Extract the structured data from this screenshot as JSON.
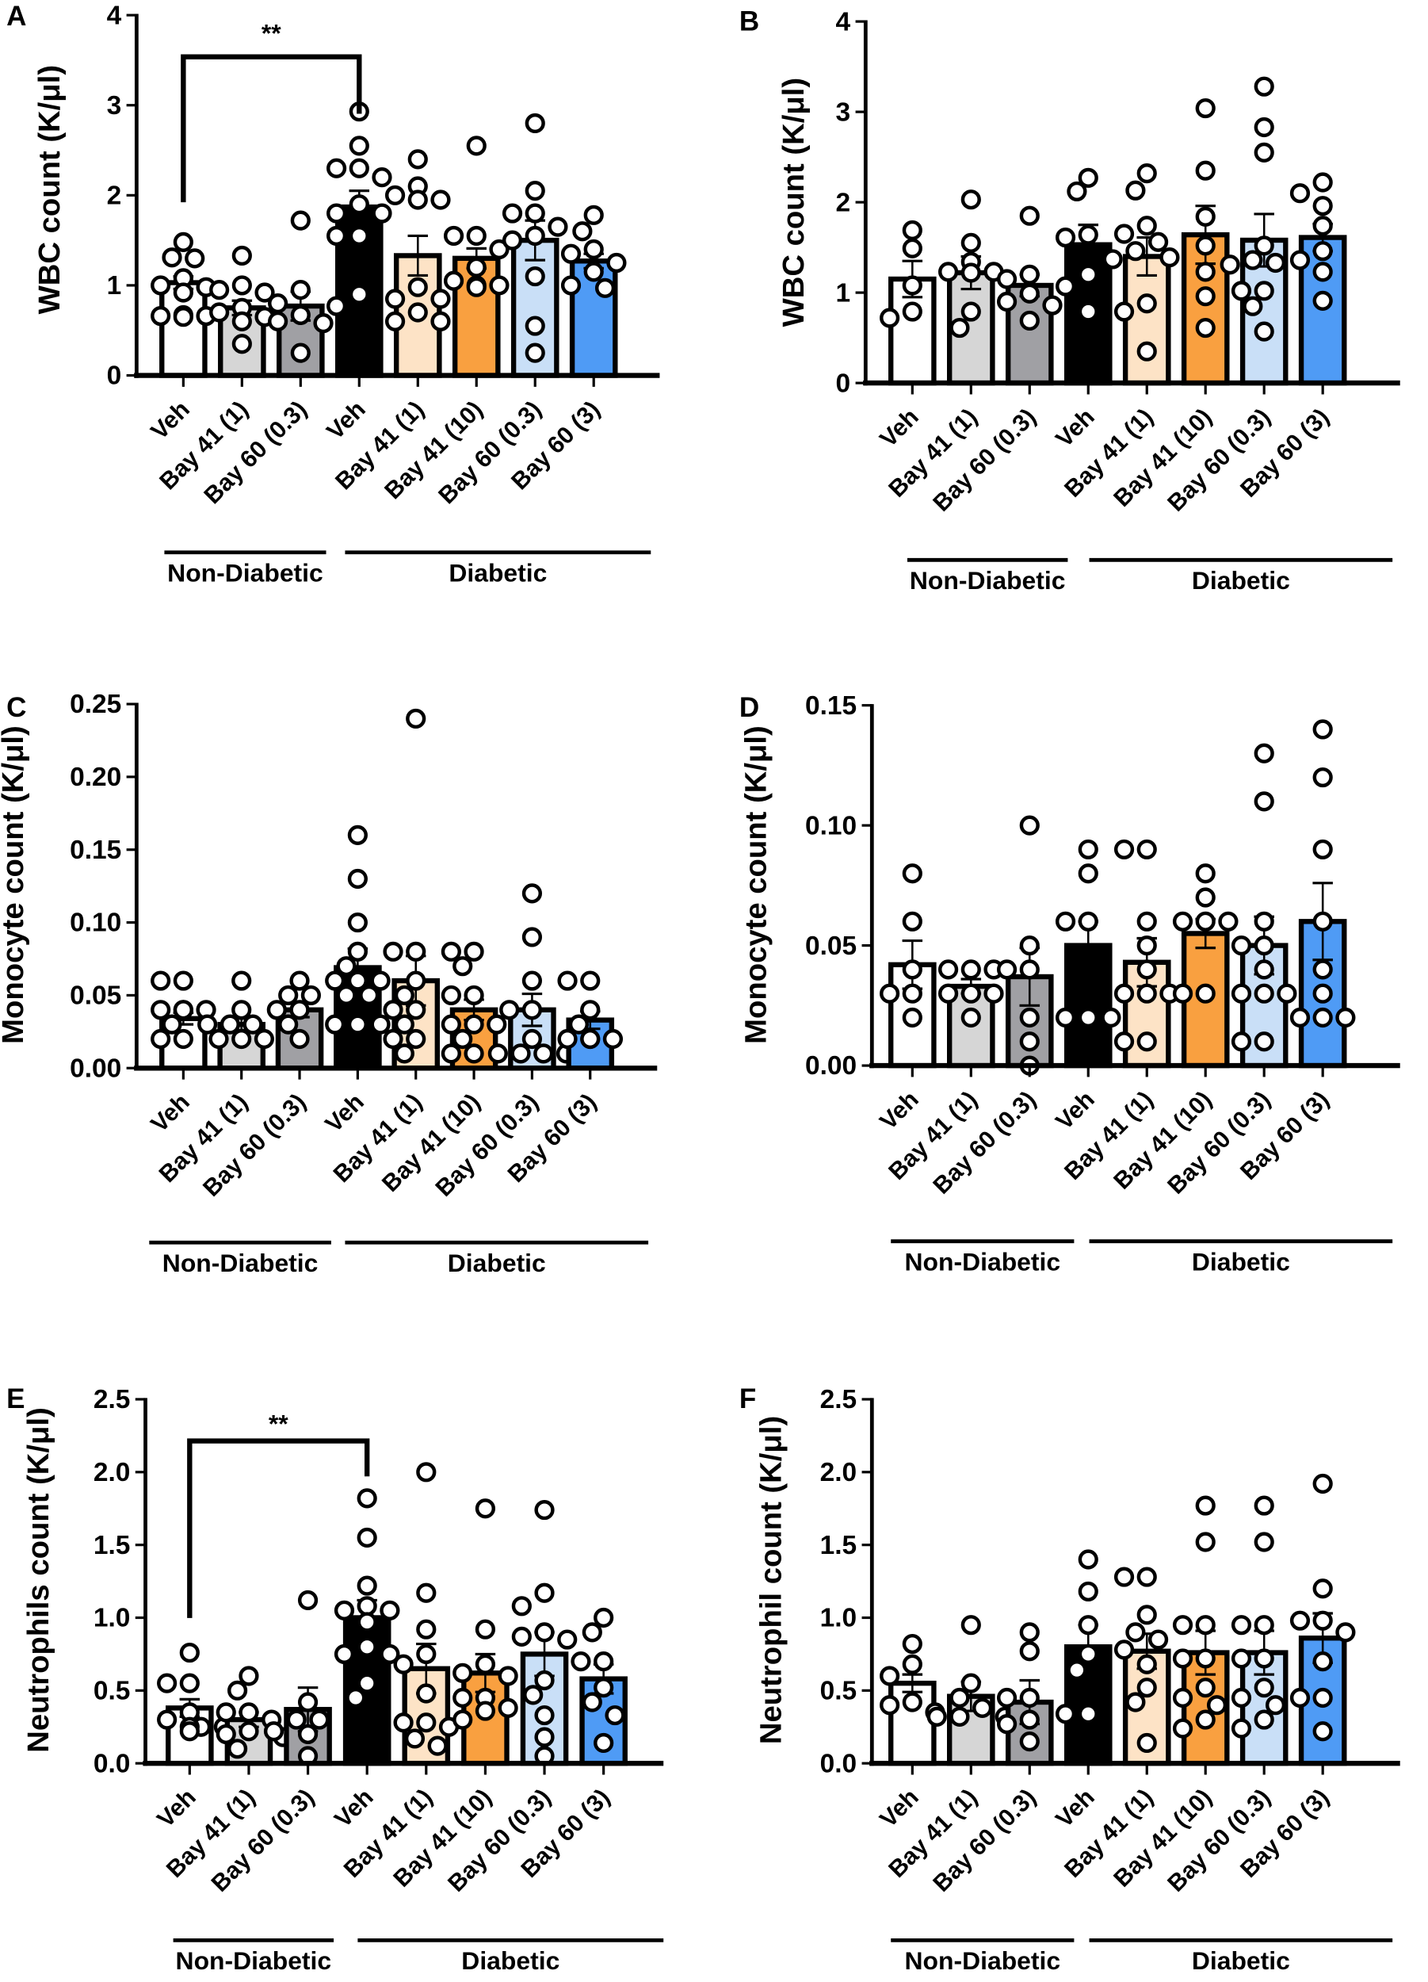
{
  "colors": [
    "#ffffff",
    "#d6d6d6",
    "#a0a0a4",
    "#000000",
    "#fde3c6",
    "#f9a040",
    "#c9dff7",
    "#4f9bf5"
  ],
  "chart_data": [
    {
      "type": "bar",
      "title": "A",
      "ylabel": "WBC count (K/μl)",
      "ylim": [
        0,
        4
      ],
      "yticks": [
        0,
        1,
        2,
        3,
        4
      ],
      "ytick_labels": [
        "0",
        "1",
        "2",
        "3",
        "4"
      ],
      "categories": [
        "Veh",
        "Bay 41 (1)",
        "Bay 60 (0.3)",
        "Veh",
        "Bay 41 (1)",
        "Bay 41 (10)",
        "Bay 60 (0.3)",
        "Bay 60 (3)"
      ],
      "groups": [
        "Non-Diabetic",
        "Diabetic"
      ],
      "significance": {
        "from": 0,
        "to": 3,
        "label": "**"
      },
      "means": [
        1.03,
        0.75,
        0.77,
        1.87,
        1.33,
        1.3,
        1.5,
        1.27
      ],
      "sem": [
        0.07,
        0.08,
        0.16,
        0.18,
        0.22,
        0.11,
        0.22,
        0.08
      ],
      "points": [
        [
          1.48,
          1.31,
          1.3,
          1.08,
          1.0,
          0.98,
          0.92,
          0.67,
          0.66,
          0.66,
          0.65
        ],
        [
          1.33,
          1.0,
          0.95,
          0.92,
          0.75,
          0.7,
          0.65,
          0.6,
          0.35
        ],
        [
          1.72,
          0.95,
          0.8,
          0.67,
          0.6,
          0.58,
          0.25
        ],
        [
          2.93,
          2.55,
          2.3,
          2.3,
          2.2,
          1.9,
          1.8,
          1.8,
          1.55,
          1.55,
          0.9,
          0.77
        ],
        [
          2.4,
          2.1,
          2.0,
          1.95,
          1.95,
          0.98,
          0.85,
          0.85,
          0.7,
          0.6,
          0.6
        ],
        [
          2.55,
          1.55,
          1.55,
          1.4,
          1.2,
          1.05,
          1.0,
          1.0,
          0.98
        ],
        [
          2.8,
          2.05,
          1.8,
          1.8,
          1.65,
          1.55,
          1.5,
          1.1,
          0.55,
          0.25
        ],
        [
          1.78,
          1.6,
          1.4,
          1.35,
          1.25,
          1.15,
          1.0,
          0.97
        ]
      ]
    },
    {
      "type": "bar",
      "title": "B",
      "ylabel": "WBC count (K/μl)",
      "ylim": [
        0,
        4
      ],
      "yticks": [
        0,
        1,
        2,
        3,
        4
      ],
      "ytick_labels": [
        "0",
        "1",
        "2",
        "3",
        "4"
      ],
      "categories": [
        "Veh",
        "Bay 41 (1)",
        "Bay 60 (0.3)",
        "Veh",
        "Bay 41 (1)",
        "Bay 41 (10)",
        "Bay 60 (0.3)",
        "Bay 60 (3)"
      ],
      "groups": [
        "Non-Diabetic",
        "Diabetic"
      ],
      "means": [
        1.15,
        1.22,
        1.08,
        1.53,
        1.4,
        1.64,
        1.58,
        1.61
      ],
      "sem": [
        0.2,
        0.18,
        0.12,
        0.22,
        0.21,
        0.32,
        0.29,
        0.15
      ],
      "points": [
        [
          1.69,
          1.49,
          1.08,
          0.79,
          0.72
        ],
        [
          2.03,
          1.55,
          1.34,
          1.23,
          1.23,
          1.22,
          0.79,
          0.61
        ],
        [
          1.85,
          1.2,
          1.15,
          0.99,
          0.9,
          0.86,
          0.69
        ],
        [
          2.27,
          2.12,
          1.64,
          1.61,
          1.2,
          1.07,
          0.79
        ],
        [
          2.32,
          2.13,
          1.74,
          1.65,
          1.56,
          1.46,
          1.39,
          1.37,
          0.88,
          0.79,
          0.35
        ],
        [
          3.04,
          2.35,
          1.84,
          1.52,
          1.23,
          0.96,
          0.61
        ],
        [
          3.28,
          2.83,
          2.55,
          1.52,
          1.36,
          1.33,
          1.31,
          1.02,
          1.02,
          0.85,
          0.57
        ],
        [
          2.22,
          2.1,
          1.96,
          1.74,
          1.46,
          1.36,
          1.23,
          0.91
        ]
      ]
    },
    {
      "type": "bar",
      "title": "C",
      "ylabel": "Monocyte count (K/μl)",
      "ylim": [
        0,
        0.25
      ],
      "yticks": [
        0,
        0.05,
        0.1,
        0.15,
        0.2,
        0.25
      ],
      "ytick_labels": [
        "0.00",
        "0.05",
        "0.10",
        "0.15",
        "0.20",
        "0.25"
      ],
      "categories": [
        "Veh",
        "Bay 41 (1)",
        "Bay 60 (0.3)",
        "Veh",
        "Bay 41 (1)",
        "Bay 41 (10)",
        "Bay 60 (0.3)",
        "Bay 60 (3)"
      ],
      "groups": [
        "Non-Diabetic",
        "Diabetic"
      ],
      "means": [
        0.034,
        0.03,
        0.04,
        0.069,
        0.06,
        0.04,
        0.04,
        0.033
      ],
      "sem": [
        0.004,
        0.004,
        0.005,
        0.013,
        0.017,
        0.007,
        0.011,
        0.006
      ],
      "points": [
        [
          0.06,
          0.06,
          0.04,
          0.04,
          0.04,
          0.04,
          0.03,
          0.02,
          0.02
        ],
        [
          0.06,
          0.04,
          0.03,
          0.03,
          0.03,
          0.02,
          0.02,
          0.02
        ],
        [
          0.06,
          0.05,
          0.05,
          0.04,
          0.04,
          0.03,
          0.02
        ],
        [
          0.16,
          0.13,
          0.1,
          0.08,
          0.07,
          0.06,
          0.06,
          0.06,
          0.05,
          0.05,
          0.03,
          0.03,
          0.03
        ],
        [
          0.24,
          0.08,
          0.08,
          0.06,
          0.05,
          0.04,
          0.04,
          0.03,
          0.02,
          0.02,
          0.01
        ],
        [
          0.08,
          0.08,
          0.07,
          0.05,
          0.05,
          0.03,
          0.03,
          0.03,
          0.02,
          0.01,
          0.01
        ],
        [
          0.12,
          0.09,
          0.06,
          0.04,
          0.04,
          0.02,
          0.01,
          0.01,
          0.01,
          0.01
        ],
        [
          0.06,
          0.06,
          0.04,
          0.03,
          0.02,
          0.02,
          0.02,
          0.02
        ]
      ]
    },
    {
      "type": "bar",
      "title": "D",
      "ylabel": "Monocyte count (K/μl)",
      "ylim": [
        0,
        0.15
      ],
      "yticks": [
        0,
        0.05,
        0.1,
        0.15
      ],
      "ytick_labels": [
        "0.00",
        "0.05",
        "0.10",
        "0.15"
      ],
      "categories": [
        "Veh",
        "Bay 41 (1)",
        "Bay 60 (0.3)",
        "Veh",
        "Bay 41 (1)",
        "Bay 41 (10)",
        "Bay 60 (0.3)",
        "Bay 60 (3)"
      ],
      "groups": [
        "Non-Diabetic",
        "Diabetic"
      ],
      "means": [
        0.042,
        0.033,
        0.037,
        0.05,
        0.043,
        0.055,
        0.05,
        0.06
      ],
      "sem": [
        0.01,
        0.003,
        0.012,
        0.01,
        0.01,
        0.006,
        0.012,
        0.016
      ],
      "points": [
        [
          0.08,
          0.06,
          0.04,
          0.03,
          0.03,
          0.02
        ],
        [
          0.04,
          0.04,
          0.04,
          0.03,
          0.03,
          0.03,
          0.02
        ],
        [
          0.1,
          0.05,
          0.04,
          0.04,
          0.02,
          0.01,
          0.0
        ],
        [
          0.09,
          0.08,
          0.06,
          0.06,
          0.02,
          0.02,
          0.02
        ],
        [
          0.09,
          0.09,
          0.06,
          0.05,
          0.04,
          0.03,
          0.03,
          0.03,
          0.01,
          0.01
        ],
        [
          0.08,
          0.07,
          0.06,
          0.06,
          0.06,
          0.03,
          0.03
        ],
        [
          0.13,
          0.11,
          0.06,
          0.05,
          0.05,
          0.04,
          0.03,
          0.03,
          0.03,
          0.01,
          0.01
        ],
        [
          0.14,
          0.12,
          0.09,
          0.06,
          0.04,
          0.03,
          0.02,
          0.02,
          0.02
        ]
      ]
    },
    {
      "type": "bar",
      "title": "E",
      "ylabel": "Neutrophils count (K/μl)",
      "ylim": [
        0,
        2.5
      ],
      "yticks": [
        0,
        0.5,
        1.0,
        1.5,
        2.0,
        2.5
      ],
      "ytick_labels": [
        "0.0",
        "0.5",
        "1.0",
        "1.5",
        "2.0",
        "2.5"
      ],
      "categories": [
        "Veh",
        "Bay 41 (1)",
        "Bay 60 (0.3)",
        "Veh",
        "Bay 41 (1)",
        "Bay 41 (10)",
        "Bay 60 (0.3)",
        "Bay 60 (3)"
      ],
      "groups": [
        "Non-Diabetic",
        "Diabetic"
      ],
      "significance": {
        "from": 0,
        "to": 3,
        "label": "**"
      },
      "means": [
        0.38,
        0.3,
        0.37,
        1.0,
        0.65,
        0.62,
        0.75,
        0.58
      ],
      "sem": [
        0.06,
        0.05,
        0.15,
        0.12,
        0.17,
        0.13,
        0.15,
        0.1
      ],
      "points": [
        [
          0.76,
          0.55,
          0.55,
          0.35,
          0.3,
          0.25,
          0.25,
          0.25,
          0.22
        ],
        [
          0.6,
          0.5,
          0.35,
          0.35,
          0.3,
          0.22,
          0.2,
          0.18,
          0.1
        ],
        [
          1.12,
          0.42,
          0.3,
          0.3,
          0.22,
          0.2,
          0.05
        ],
        [
          1.82,
          1.55,
          1.22,
          1.08,
          1.05,
          1.05,
          0.97,
          0.8,
          0.75,
          0.75,
          0.55,
          0.45
        ],
        [
          2.0,
          1.17,
          0.92,
          0.75,
          0.68,
          0.48,
          0.28,
          0.28,
          0.25,
          0.17,
          0.12
        ],
        [
          1.75,
          0.92,
          0.68,
          0.62,
          0.6,
          0.45,
          0.45,
          0.38,
          0.36,
          0.3
        ],
        [
          1.74,
          1.17,
          1.08,
          0.9,
          0.87,
          0.85,
          0.57,
          0.47,
          0.33,
          0.18,
          0.05
        ],
        [
          1.0,
          0.9,
          0.7,
          0.7,
          0.52,
          0.42,
          0.33,
          0.14
        ]
      ]
    },
    {
      "type": "bar",
      "title": "F",
      "ylabel": "Neutrophil count (K/μl)",
      "ylim": [
        0,
        2.5
      ],
      "yticks": [
        0,
        0.5,
        1.0,
        1.5,
        2.0,
        2.5
      ],
      "ytick_labels": [
        "0.0",
        "0.5",
        "1.0",
        "1.5",
        "2.0",
        "2.5"
      ],
      "categories": [
        "Veh",
        "Bay 41 (1)",
        "Bay 60 (0.3)",
        "Veh",
        "Bay 41 (1)",
        "Bay 41 (10)",
        "Bay 60 (0.3)",
        "Bay 60 (3)"
      ],
      "groups": [
        "Non-Diabetic",
        "Diabetic"
      ],
      "means": [
        0.55,
        0.46,
        0.42,
        0.8,
        0.77,
        0.76,
        0.76,
        0.86
      ],
      "sem": [
        0.06,
        0.1,
        0.15,
        0.15,
        0.12,
        0.15,
        0.15,
        0.17
      ],
      "points": [
        [
          0.82,
          0.68,
          0.6,
          0.42,
          0.4,
          0.35
        ],
        [
          0.95,
          0.55,
          0.45,
          0.38,
          0.32,
          0.32,
          0.32
        ],
        [
          0.9,
          0.77,
          0.45,
          0.45,
          0.3,
          0.27,
          0.15
        ],
        [
          1.4,
          1.18,
          0.95,
          0.75,
          0.64,
          0.34,
          0.34
        ],
        [
          1.28,
          1.28,
          1.02,
          0.9,
          0.85,
          0.78,
          0.68,
          0.52,
          0.42,
          0.14
        ],
        [
          1.77,
          1.52,
          0.95,
          0.95,
          0.72,
          0.72,
          0.52,
          0.45,
          0.4,
          0.3,
          0.24
        ],
        [
          1.77,
          1.52,
          0.95,
          0.95,
          0.72,
          0.72,
          0.52,
          0.45,
          0.4,
          0.3,
          0.24
        ],
        [
          1.92,
          1.2,
          0.98,
          0.98,
          0.9,
          0.7,
          0.45,
          0.45,
          0.22
        ]
      ]
    }
  ]
}
